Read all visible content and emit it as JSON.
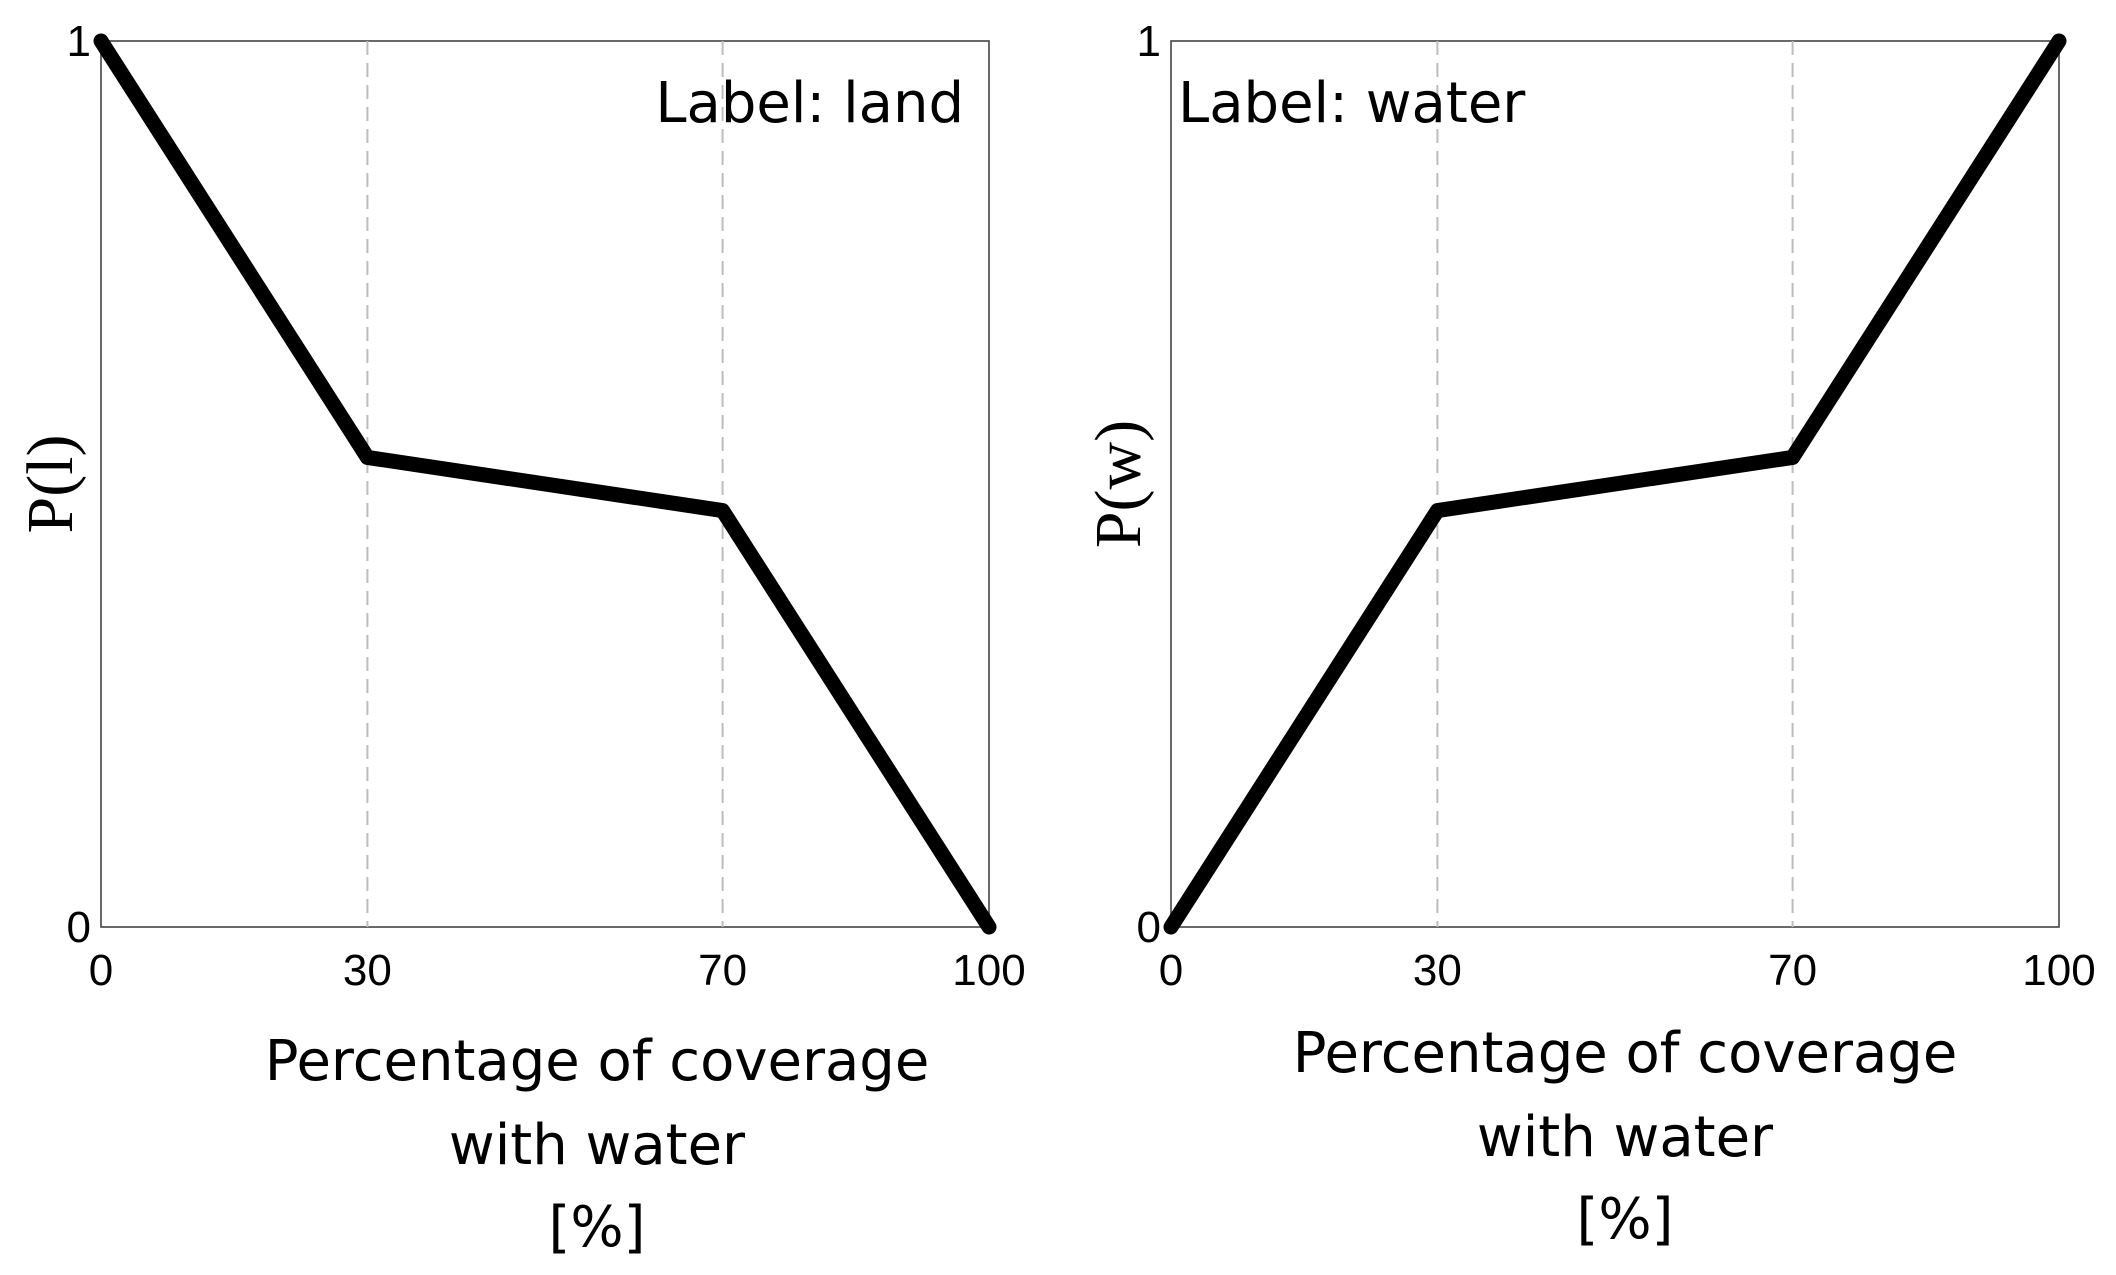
{
  "chart_data": [
    {
      "type": "line",
      "xlabel": [
        "Percentage of coverage",
        "with water",
        "[%]"
      ],
      "ylabel": "P(l)",
      "annotation": "Label: land",
      "xlim": [
        0,
        100
      ],
      "ylim": [
        0,
        1
      ],
      "xticks": [
        "0",
        "30",
        "70",
        "100"
      ],
      "yticks": [
        "0",
        "1"
      ],
      "guide_lines_x": [
        30,
        70
      ],
      "series": [
        {
          "x": [
            0,
            30,
            70,
            100
          ],
          "y": [
            1,
            0.53,
            0.47,
            0
          ]
        }
      ]
    },
    {
      "type": "line",
      "xlabel": [
        "Percentage of coverage",
        "with water",
        "[%]"
      ],
      "ylabel": "P(w)",
      "annotation": "Label: water",
      "xlim": [
        0,
        100
      ],
      "ylim": [
        0,
        1
      ],
      "xticks": [
        "0",
        "30",
        "70",
        "100"
      ],
      "yticks": [
        "0",
        "1"
      ],
      "guide_lines_x": [
        30,
        70
      ],
      "series": [
        {
          "x": [
            0,
            30,
            70,
            100
          ],
          "y": [
            0,
            0.47,
            0.53,
            1
          ]
        }
      ]
    }
  ]
}
